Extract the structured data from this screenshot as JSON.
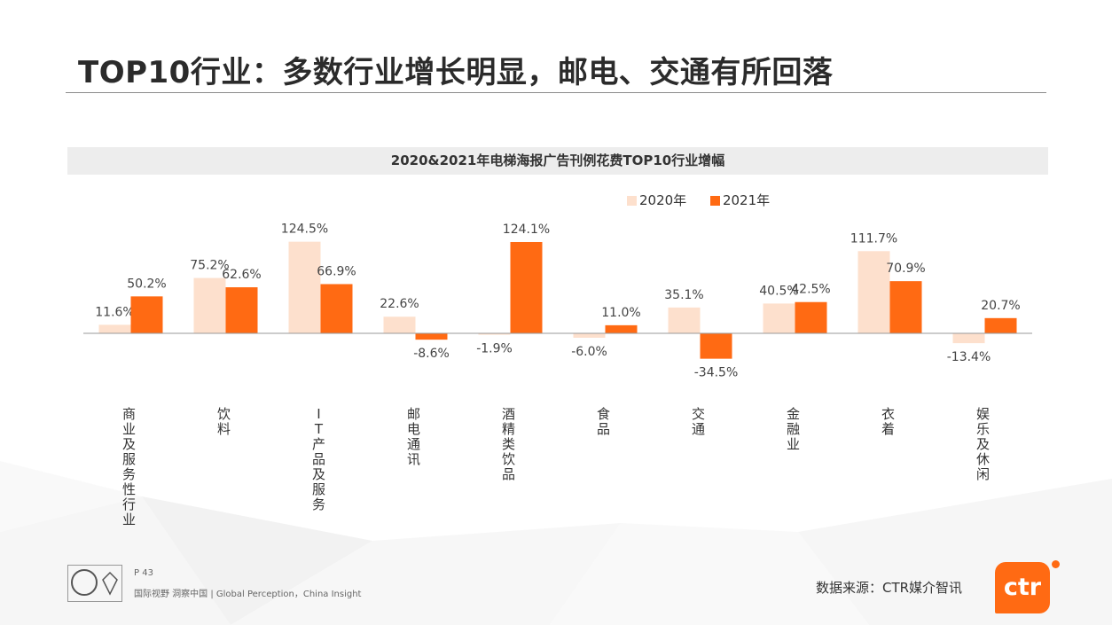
{
  "page": {
    "title": "TOP10行业：多数行业增长明显，邮电、交通有所回落",
    "page_number": "P 43",
    "tagline": "国际视野 洞察中国 | Global Perception，China Insight",
    "source": "数据来源：CTR媒介智讯",
    "logo_text": "ctr"
  },
  "colors": {
    "series_2020": "#fde0cd",
    "series_2021": "#ff6a13",
    "axis": "#999999"
  },
  "chart_data": {
    "type": "bar",
    "title": "2020&2021年电梯海报广告刊例花费TOP10行业增幅",
    "categories": [
      "商业及服务性行业",
      "饮料",
      "IT产品及服务",
      "邮电通讯",
      "酒精类饮品",
      "食品",
      "交通",
      "金融业",
      "衣着",
      "娱乐及休闲"
    ],
    "series": [
      {
        "name": "2020年",
        "values": [
          11.6,
          75.2,
          124.5,
          22.6,
          -1.9,
          -6.0,
          35.1,
          40.5,
          111.7,
          -13.4
        ]
      },
      {
        "name": "2021年",
        "values": [
          50.2,
          62.6,
          66.9,
          -8.6,
          124.1,
          11.0,
          -34.5,
          42.5,
          70.9,
          20.7
        ]
      }
    ],
    "value_labels_2020": [
      "11.6%",
      "75.2%",
      "124.5%",
      "22.6%",
      "-1.9%",
      "-6.0%",
      "35.1%",
      "40.5%",
      "111.7%",
      "-13.4%"
    ],
    "value_labels_2021": [
      "50.2%",
      "62.6%",
      "66.9%",
      "-8.6%",
      "124.1%",
      "11.0%",
      "-34.5%",
      "42.5%",
      "70.9%",
      "20.7%"
    ],
    "unit": "%",
    "legend_position": "top-right",
    "grid": false
  }
}
